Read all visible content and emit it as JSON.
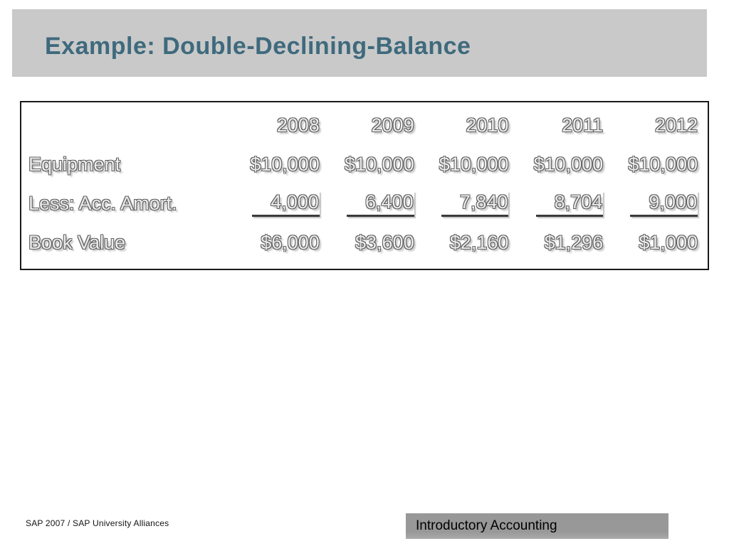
{
  "slide": {
    "title": "Example: Double-Declining-Balance",
    "footer_left": "SAP 2007 /  SAP University Alliances",
    "footer_box": "Introductory Accounting"
  },
  "table": {
    "years": [
      "2008",
      "2009",
      "2010",
      "2011",
      "2012"
    ],
    "rows": [
      {
        "label": "Equipment",
        "values": [
          "$10,000",
          "$10,000",
          "$10,000",
          "$10,000",
          "$10,000"
        ],
        "underline": false
      },
      {
        "label": "Less: Acc. Amort.",
        "values": [
          "4,000",
          "6,400",
          "7,840",
          "8,704",
          "9,000"
        ],
        "underline": true
      },
      {
        "label": "Book Value",
        "values": [
          "$6,000",
          "$3,600",
          "$2,160",
          "$1,296",
          "$1,000"
        ],
        "underline": false
      }
    ]
  },
  "colors": {
    "title_band_bg": "#c9c9c9",
    "title_text": "#3f6a7d",
    "table_border": "#1a1a1a",
    "footer_box_bg": "#989898"
  }
}
